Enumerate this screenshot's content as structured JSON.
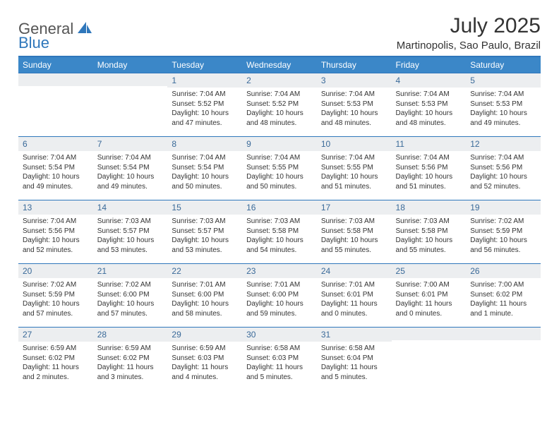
{
  "logo": {
    "text1": "General",
    "text2": "Blue"
  },
  "title": "July 2025",
  "location": "Martinopolis, Sao Paulo, Brazil",
  "colors": {
    "header_bg": "#3b87c8",
    "header_border": "#2f77bb",
    "daynum_bg": "#eceef0",
    "daynum_color": "#3a6a99",
    "text": "#333333",
    "logo_gray": "#555555",
    "logo_blue": "#2f77bb"
  },
  "weekdays": [
    "Sunday",
    "Monday",
    "Tuesday",
    "Wednesday",
    "Thursday",
    "Friday",
    "Saturday"
  ],
  "weeks": [
    [
      {
        "n": "",
        "c": ""
      },
      {
        "n": "",
        "c": ""
      },
      {
        "n": "1",
        "c": "Sunrise: 7:04 AM\nSunset: 5:52 PM\nDaylight: 10 hours and 47 minutes."
      },
      {
        "n": "2",
        "c": "Sunrise: 7:04 AM\nSunset: 5:52 PM\nDaylight: 10 hours and 48 minutes."
      },
      {
        "n": "3",
        "c": "Sunrise: 7:04 AM\nSunset: 5:53 PM\nDaylight: 10 hours and 48 minutes."
      },
      {
        "n": "4",
        "c": "Sunrise: 7:04 AM\nSunset: 5:53 PM\nDaylight: 10 hours and 48 minutes."
      },
      {
        "n": "5",
        "c": "Sunrise: 7:04 AM\nSunset: 5:53 PM\nDaylight: 10 hours and 49 minutes."
      }
    ],
    [
      {
        "n": "6",
        "c": "Sunrise: 7:04 AM\nSunset: 5:54 PM\nDaylight: 10 hours and 49 minutes."
      },
      {
        "n": "7",
        "c": "Sunrise: 7:04 AM\nSunset: 5:54 PM\nDaylight: 10 hours and 49 minutes."
      },
      {
        "n": "8",
        "c": "Sunrise: 7:04 AM\nSunset: 5:54 PM\nDaylight: 10 hours and 50 minutes."
      },
      {
        "n": "9",
        "c": "Sunrise: 7:04 AM\nSunset: 5:55 PM\nDaylight: 10 hours and 50 minutes."
      },
      {
        "n": "10",
        "c": "Sunrise: 7:04 AM\nSunset: 5:55 PM\nDaylight: 10 hours and 51 minutes."
      },
      {
        "n": "11",
        "c": "Sunrise: 7:04 AM\nSunset: 5:56 PM\nDaylight: 10 hours and 51 minutes."
      },
      {
        "n": "12",
        "c": "Sunrise: 7:04 AM\nSunset: 5:56 PM\nDaylight: 10 hours and 52 minutes."
      }
    ],
    [
      {
        "n": "13",
        "c": "Sunrise: 7:04 AM\nSunset: 5:56 PM\nDaylight: 10 hours and 52 minutes."
      },
      {
        "n": "14",
        "c": "Sunrise: 7:03 AM\nSunset: 5:57 PM\nDaylight: 10 hours and 53 minutes."
      },
      {
        "n": "15",
        "c": "Sunrise: 7:03 AM\nSunset: 5:57 PM\nDaylight: 10 hours and 53 minutes."
      },
      {
        "n": "16",
        "c": "Sunrise: 7:03 AM\nSunset: 5:58 PM\nDaylight: 10 hours and 54 minutes."
      },
      {
        "n": "17",
        "c": "Sunrise: 7:03 AM\nSunset: 5:58 PM\nDaylight: 10 hours and 55 minutes."
      },
      {
        "n": "18",
        "c": "Sunrise: 7:03 AM\nSunset: 5:58 PM\nDaylight: 10 hours and 55 minutes."
      },
      {
        "n": "19",
        "c": "Sunrise: 7:02 AM\nSunset: 5:59 PM\nDaylight: 10 hours and 56 minutes."
      }
    ],
    [
      {
        "n": "20",
        "c": "Sunrise: 7:02 AM\nSunset: 5:59 PM\nDaylight: 10 hours and 57 minutes."
      },
      {
        "n": "21",
        "c": "Sunrise: 7:02 AM\nSunset: 6:00 PM\nDaylight: 10 hours and 57 minutes."
      },
      {
        "n": "22",
        "c": "Sunrise: 7:01 AM\nSunset: 6:00 PM\nDaylight: 10 hours and 58 minutes."
      },
      {
        "n": "23",
        "c": "Sunrise: 7:01 AM\nSunset: 6:00 PM\nDaylight: 10 hours and 59 minutes."
      },
      {
        "n": "24",
        "c": "Sunrise: 7:01 AM\nSunset: 6:01 PM\nDaylight: 11 hours and 0 minutes."
      },
      {
        "n": "25",
        "c": "Sunrise: 7:00 AM\nSunset: 6:01 PM\nDaylight: 11 hours and 0 minutes."
      },
      {
        "n": "26",
        "c": "Sunrise: 7:00 AM\nSunset: 6:02 PM\nDaylight: 11 hours and 1 minute."
      }
    ],
    [
      {
        "n": "27",
        "c": "Sunrise: 6:59 AM\nSunset: 6:02 PM\nDaylight: 11 hours and 2 minutes."
      },
      {
        "n": "28",
        "c": "Sunrise: 6:59 AM\nSunset: 6:02 PM\nDaylight: 11 hours and 3 minutes."
      },
      {
        "n": "29",
        "c": "Sunrise: 6:59 AM\nSunset: 6:03 PM\nDaylight: 11 hours and 4 minutes."
      },
      {
        "n": "30",
        "c": "Sunrise: 6:58 AM\nSunset: 6:03 PM\nDaylight: 11 hours and 5 minutes."
      },
      {
        "n": "31",
        "c": "Sunrise: 6:58 AM\nSunset: 6:04 PM\nDaylight: 11 hours and 5 minutes."
      },
      {
        "n": "",
        "c": ""
      },
      {
        "n": "",
        "c": ""
      }
    ]
  ]
}
